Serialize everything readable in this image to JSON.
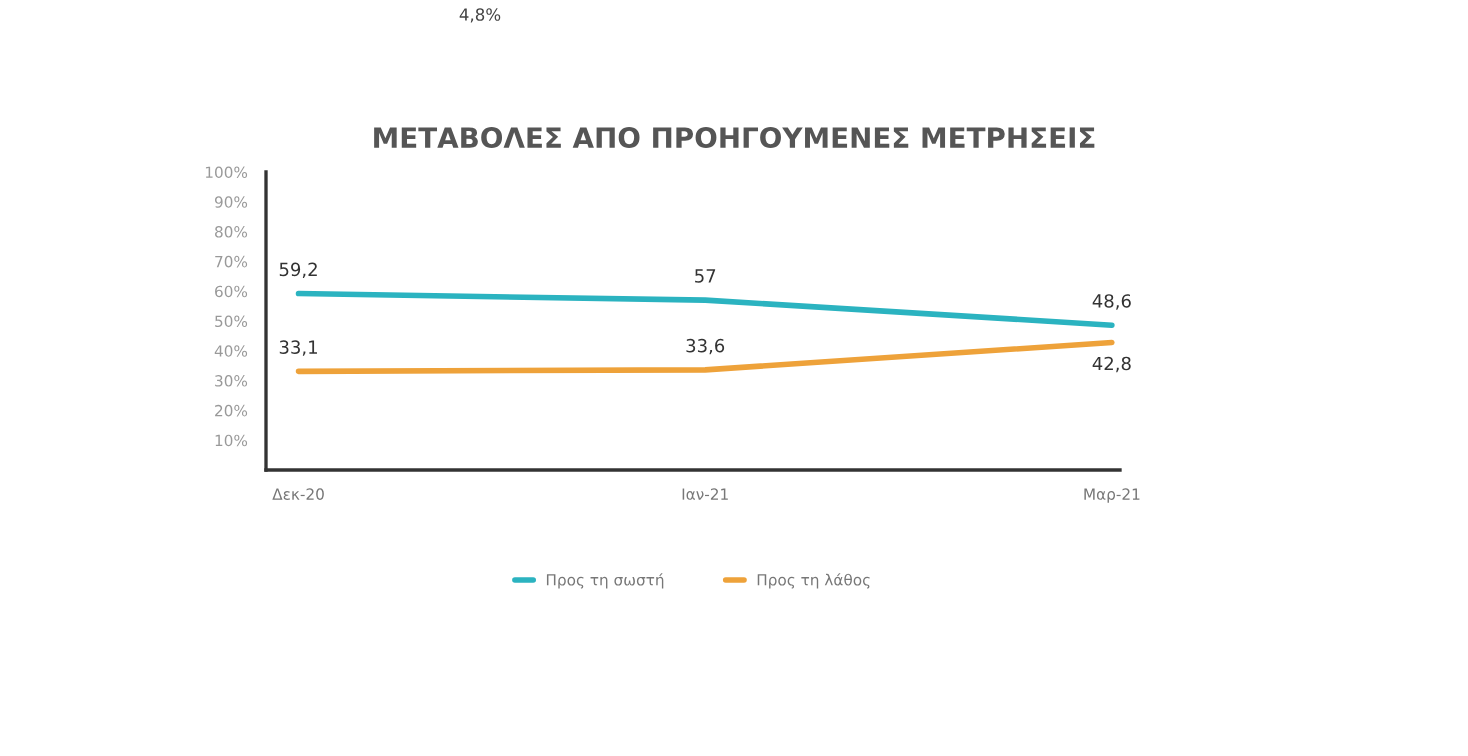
{
  "chart_data": {
    "type": "line",
    "title": "ΜΕΤΑΒΟΛΕΣ ΑΠΟ ΠΡΟΗΓΟΥΜΕΝΕΣ ΜΕΤΡΗΣΕΙΣ",
    "annotations": [
      "4,8%"
    ],
    "categories": [
      "Δεκ-20",
      "Ιαν-21",
      "Μαρ-21"
    ],
    "series": [
      {
        "name": "Προς τη σωστή",
        "color": "#2bb3c0",
        "values": [
          59.2,
          57,
          48.6
        ],
        "value_labels": [
          "59,2",
          "57",
          "48,6"
        ]
      },
      {
        "name": "Προς τη λάθος",
        "color": "#eea23a",
        "values": [
          33.1,
          33.6,
          42.8
        ],
        "value_labels": [
          "33,1",
          "33,6",
          "42,8"
        ]
      }
    ],
    "ylim": [
      0,
      100
    ],
    "yticks": [
      {
        "value": 0,
        "label": null
      },
      {
        "value": 10,
        "label": "10%"
      },
      {
        "value": 20,
        "label": "20%"
      },
      {
        "value": 30,
        "label": "30%"
      },
      {
        "value": 40,
        "label": "40%"
      },
      {
        "value": 50,
        "label": "50%"
      },
      {
        "value": 60,
        "label": "60%"
      },
      {
        "value": 70,
        "label": "70%"
      },
      {
        "value": 80,
        "label": "80%"
      },
      {
        "value": 90,
        "label": "90%"
      },
      {
        "value": 100,
        "label": "100%"
      }
    ],
    "grid": false,
    "legend": "bottom",
    "marker": "none",
    "line_style": "solid"
  }
}
